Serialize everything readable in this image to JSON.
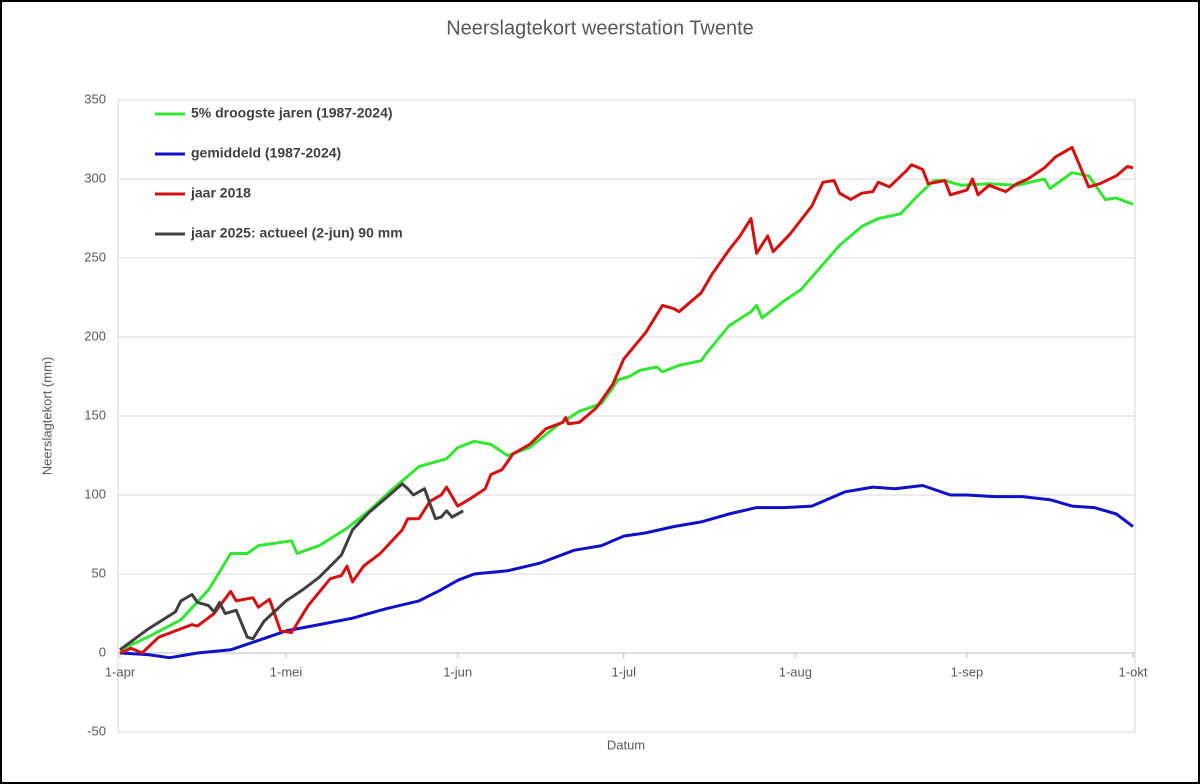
{
  "chart_data": {
    "type": "line",
    "title": "Neerslagtekort weerstation Twente",
    "ylabel": "Neerslagtekort (mm)",
    "xlabel": "Datum",
    "xlim": [
      0,
      183
    ],
    "xticks": [
      {
        "value": 0,
        "label": "1-apr"
      },
      {
        "value": 30,
        "label": "1-mei"
      },
      {
        "value": 61,
        "label": "1-jun"
      },
      {
        "value": 91,
        "label": "1-jul"
      },
      {
        "value": 122,
        "label": "1-aug"
      },
      {
        "value": 153,
        "label": "1-sep"
      },
      {
        "value": 183,
        "label": "1-okt"
      }
    ],
    "ylim": [
      -50,
      350
    ],
    "yticks": [
      -50,
      0,
      50,
      100,
      150,
      200,
      250,
      300,
      350
    ],
    "grid": true,
    "legend": "upper left",
    "series": [
      {
        "name": "5% droogste jaren (1987-2024)",
        "color": "#33e633",
        "x": [
          0,
          5,
          11,
          16,
          20,
          23,
          25,
          31,
          32,
          36,
          41,
          45,
          49,
          54,
          59,
          61,
          64,
          67,
          70,
          74,
          79,
          83,
          87,
          90,
          92,
          94,
          97,
          98,
          101,
          105,
          106,
          110,
          114,
          115,
          116,
          120,
          123,
          126,
          130,
          134,
          137,
          141,
          144,
          147,
          149,
          152,
          157,
          162,
          167,
          168,
          172,
          175,
          178,
          180,
          183
        ],
        "values": [
          2,
          10,
          21,
          40,
          63,
          63,
          68,
          71,
          63,
          68,
          79,
          90,
          103,
          118,
          123,
          130,
          134,
          132,
          125,
          130,
          144,
          153,
          158,
          173,
          175,
          179,
          181,
          178,
          182,
          185,
          190,
          207,
          216,
          220,
          212,
          223,
          230,
          242,
          258,
          270,
          275,
          278,
          289,
          299,
          299,
          296,
          297,
          296,
          300,
          294,
          304,
          302,
          287,
          288,
          284
        ]
      },
      {
        "name": "gemiddeld (1987-2024)",
        "color": "#1010c8",
        "x": [
          0,
          5,
          9,
          14,
          20,
          25,
          30,
          36,
          42,
          48,
          54,
          58,
          61,
          64,
          70,
          76,
          82,
          87,
          91,
          95,
          100,
          105,
          110,
          115,
          120,
          125,
          131,
          136,
          140,
          145,
          150,
          153,
          158,
          163,
          168,
          172,
          176,
          180,
          183
        ],
        "values": [
          0,
          -1,
          -3,
          0,
          2,
          8,
          14,
          18,
          22,
          28,
          33,
          40,
          46,
          50,
          52,
          57,
          65,
          68,
          74,
          76,
          80,
          83,
          88,
          92,
          92,
          93,
          102,
          105,
          104,
          106,
          100,
          100,
          99,
          99,
          97,
          93,
          92,
          88,
          80
        ]
      },
      {
        "name": "jaar 2018",
        "color": "#d41010",
        "x": [
          0,
          2,
          4,
          7,
          13,
          14,
          17,
          20,
          21,
          24,
          25,
          27,
          29,
          31,
          34,
          38,
          40,
          41,
          42,
          44,
          47,
          51,
          52,
          54,
          56,
          58,
          59,
          61,
          63,
          66,
          67,
          69,
          71,
          74,
          77,
          80,
          80.5,
          81,
          83,
          86,
          89,
          91,
          95,
          98,
          100,
          101,
          105,
          107,
          110,
          112,
          114,
          115,
          117,
          118,
          121,
          125,
          127,
          129,
          130,
          132,
          134,
          136,
          137,
          139,
          142,
          143,
          145,
          146,
          149,
          150,
          153,
          154,
          155,
          157,
          160,
          162,
          164,
          167,
          169,
          172,
          175,
          177,
          180,
          182,
          183
        ],
        "values": [
          0,
          3,
          0,
          10,
          18,
          17,
          25,
          39,
          33,
          35,
          29,
          34,
          14,
          13,
          30,
          47,
          49,
          55,
          45,
          55,
          63,
          78,
          85,
          85,
          96,
          100,
          105,
          93,
          97,
          104,
          113,
          116,
          126,
          132,
          142,
          146,
          149,
          145,
          146,
          155,
          170,
          186,
          203,
          220,
          218,
          216,
          228,
          240,
          255,
          264,
          275,
          253,
          264,
          254,
          265,
          283,
          298,
          299,
          291,
          287,
          291,
          292,
          298,
          295,
          305,
          309,
          306,
          297,
          299,
          290,
          293,
          300,
          290,
          296,
          292,
          297,
          300,
          307,
          314,
          320,
          295,
          297,
          302,
          308,
          307
        ]
      },
      {
        "name": "jaar 2025: actueel (2-jun) 90 mm",
        "color": "#404040",
        "x": [
          0,
          5,
          10,
          11,
          13,
          14,
          16,
          17,
          18,
          19,
          21,
          23,
          24,
          26,
          30,
          33,
          36,
          40,
          42,
          45,
          48,
          51,
          52,
          53,
          55,
          57,
          58,
          59,
          60,
          62
        ],
        "values": [
          2,
          15,
          26,
          33,
          37,
          32,
          30,
          26,
          32,
          25,
          27,
          10,
          9,
          20,
          33,
          40,
          48,
          62,
          78,
          89,
          98,
          107,
          104,
          100,
          104,
          85,
          86,
          90,
          86,
          90
        ]
      }
    ]
  }
}
